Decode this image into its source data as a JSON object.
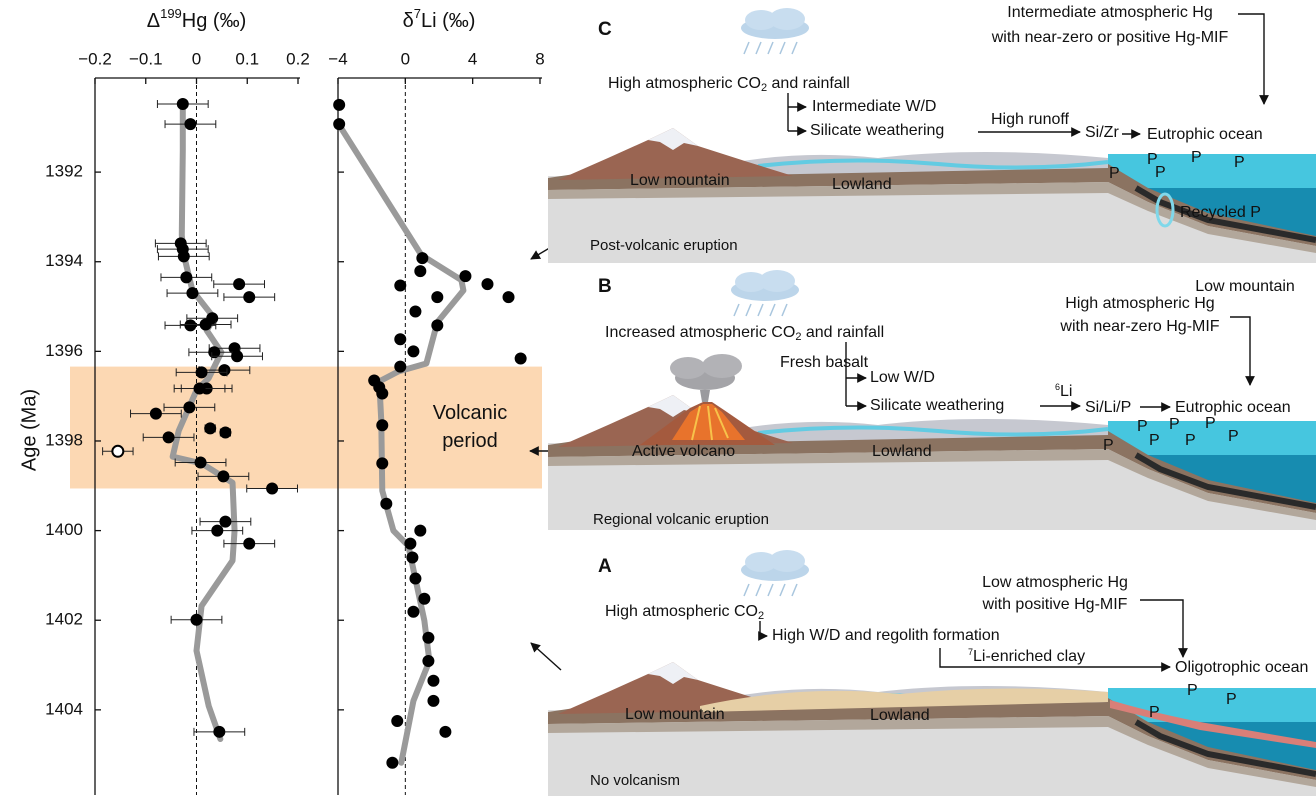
{
  "chart_data": [
    {
      "type": "scatter",
      "xlabel": [
        "Δ",
        "199",
        "Hg (‰)"
      ],
      "ylabel": "Age (Ma)",
      "xlim": [
        -0.2,
        0.2
      ],
      "xticks": [
        {
          "value": -0.2,
          "label": "−0.2"
        },
        {
          "value": -0.1,
          "label": "−0.1"
        },
        0,
        0.1,
        0.2
      ],
      "ylim": [
        1389.9,
        1405.9
      ],
      "y_reversed": true,
      "yticks": [
        1392,
        1394,
        1396,
        1398,
        1400,
        1402,
        1404
      ],
      "zero_line": 0,
      "band": {
        "from": 1396.34,
        "to": 1399.06,
        "color": "#fcd8b3",
        "label": [
          "Volcanic",
          "period"
        ]
      },
      "series": [
        {
          "kind": "line",
          "color": "#9a9a9a",
          "x": [
            -0.027,
            -0.027,
            -0.029,
            -0.025,
            -0.008,
            0.035,
            0.02,
            0.049,
            0.024,
            0,
            -0.035,
            -0.047,
            0.01,
            0.071,
            0.075,
            0.071,
            0.01,
            0,
            0.024,
            0.047
          ],
          "y": [
            1390.55,
            1391.51,
            1393.41,
            1393.85,
            1394.64,
            1395.26,
            1395.53,
            1396.02,
            1396.6,
            1396.87,
            1397.77,
            1398.35,
            1398.5,
            1398.93,
            1400,
            1400.67,
            1401.68,
            1402.68,
            1403.91,
            1404.65
          ]
        },
        {
          "kind": "points",
          "marker": "filled",
          "color": "#000000",
          "x": [
            -0.027,
            -0.012,
            -0.031,
            -0.027,
            -0.025,
            -0.02,
            0.084,
            -0.008,
            0.104,
            0.031,
            -0.012,
            0.018,
            0.075,
            0.035,
            0.08,
            0.055,
            0.01,
            0.02,
            0.006,
            -0.014,
            -0.08,
            0.027,
            0.057,
            -0.055,
            0.008,
            0.053,
            0.149,
            0.057,
            0.041,
            0.104,
            0,
            0.045
          ],
          "y": [
            1390.48,
            1390.93,
            1393.59,
            1393.72,
            1393.88,
            1394.35,
            1394.5,
            1394.7,
            1394.79,
            1395.26,
            1395.42,
            1395.4,
            1395.93,
            1396.02,
            1396.11,
            1396.42,
            1396.47,
            1396.83,
            1396.83,
            1397.25,
            1397.39,
            1397.72,
            1397.81,
            1397.92,
            1398.48,
            1398.79,
            1399.06,
            1399.8,
            1400,
            1400.29,
            1401.99,
            1404.49
          ],
          "xerr": [
            0.05,
            0.05,
            0.05,
            0.05,
            0.05,
            0.05,
            0.05,
            0.05,
            0.05,
            0.05,
            0.05,
            0.05,
            0.05,
            0.05,
            0.05,
            0.05,
            0.05,
            0.05,
            0.05,
            0.05,
            0.05,
            0.01,
            0.01,
            0.05,
            0.05,
            0.05,
            0.05,
            0.05,
            0.05,
            0.05,
            0.05,
            0.05
          ]
        },
        {
          "kind": "points",
          "marker": "open",
          "color": "#000000",
          "x": [
            -0.155
          ],
          "y": [
            1398.23
          ],
          "xerr": [
            0.03
          ]
        }
      ]
    },
    {
      "type": "scatter",
      "xlabel": [
        "δ",
        "7",
        "Li (‰)"
      ],
      "xlim": [
        -4,
        8
      ],
      "xticks": [
        {
          "value": -4,
          "label": "−4"
        },
        0,
        4,
        8
      ],
      "ylim": [
        1389.9,
        1405.9
      ],
      "y_reversed": true,
      "yticks": [
        1392,
        1394,
        1396,
        1398,
        1400,
        1402,
        1404
      ],
      "ytick_labels": false,
      "zero_line": 0,
      "series": [
        {
          "kind": "line",
          "color": "#9a9a9a",
          "x": [
            -3.93,
            0.95,
            3.33,
            3.45,
            1.9,
            1.49,
            1.25,
            -0.42,
            -1.55,
            -1.43,
            -1.37,
            -0.71,
            0.18,
            1.13,
            1.43,
            0.48,
            -0.24
          ],
          "y": [
            1390.95,
            1393.85,
            1394.41,
            1394.64,
            1395.35,
            1395.93,
            1396.27,
            1396.45,
            1396.67,
            1397.54,
            1399.11,
            1400,
            1400.34,
            1402.01,
            1402.91,
            1403.8,
            1405.18
          ]
        },
        {
          "kind": "points",
          "marker": "filled",
          "color": "#000000",
          "x": [
            -3.93,
            -3.93,
            1.01,
            0.89,
            -0.3,
            1.9,
            3.57,
            4.88,
            6.13,
            0.6,
            1.9,
            -0.3,
            0.48,
            6.85,
            -0.3,
            -1.85,
            -1.55,
            -1.37,
            -1.37,
            -1.37,
            -1.13,
            0.89,
            0.3,
            0.42,
            0.6,
            1.13,
            0.48,
            1.37,
            1.37,
            1.67,
            1.67,
            -0.48,
            2.38,
            -0.77
          ],
          "y": [
            1390.5,
            1390.93,
            1393.92,
            1394.21,
            1394.53,
            1394.79,
            1394.32,
            1394.5,
            1394.79,
            1395.11,
            1395.42,
            1395.73,
            1396,
            1396.16,
            1396.34,
            1396.65,
            1396.8,
            1396.94,
            1397.65,
            1398.5,
            1399.4,
            1400,
            1400.29,
            1400.6,
            1401.07,
            1401.52,
            1401.81,
            1402.39,
            1402.91,
            1403.35,
            1403.8,
            1404.25,
            1404.49,
            1405.18
          ]
        }
      ]
    }
  ],
  "diagram": {
    "panel_c": {
      "letter": "C",
      "caption": "Post-volcanic eruption",
      "hg_lines": [
        "Intermediate atmospheric Hg",
        "with near-zero or positive Hg-MIF"
      ],
      "co2": [
        "High atmospheric CO",
        "2",
        " and rainfall"
      ],
      "wd": "Intermediate W/D",
      "weathering": "Silicate weathering",
      "runoff": "High runoff",
      "proxy": "Si/Zr",
      "ocean": "Eutrophic ocean",
      "mountain": "Low mountain",
      "lowland": "Lowland",
      "recycled": "Recycled P",
      "p": [
        "P",
        "P",
        "P",
        "P",
        "P"
      ]
    },
    "panel_b": {
      "letter": "B",
      "caption": "Regional volcanic eruption",
      "hg_lines": [
        "High atmospheric Hg",
        "with near-zero Hg-MIF"
      ],
      "extra": "Low mountain",
      "co2": [
        "Increased atmospheric CO",
        "2",
        " and rainfall"
      ],
      "basalt": "Fresh basalt",
      "wd": "Low W/D",
      "weathering": "Silicate weathering",
      "isotope": [
        "6",
        "Li"
      ],
      "proxy": "Si/Li/P",
      "ocean": "Eutrophic ocean",
      "volcano": "Active volcano",
      "lowland": "Lowland",
      "p": [
        "P",
        "P",
        "P",
        "P",
        "P",
        "P",
        "P"
      ]
    },
    "panel_a": {
      "letter": "A",
      "caption": "No volcanism",
      "hg_lines": [
        "Low atmospheric Hg",
        "with positive Hg-MIF"
      ],
      "co2": [
        "High atmospheric CO",
        "2"
      ],
      "wd": "High W/D and regolith formation",
      "clay": [
        "7",
        "Li-enriched clay"
      ],
      "ocean": "Oligotrophic ocean",
      "mountain": "Low mountain",
      "lowland": "Lowland",
      "p": [
        "P",
        "P",
        "P"
      ]
    }
  }
}
